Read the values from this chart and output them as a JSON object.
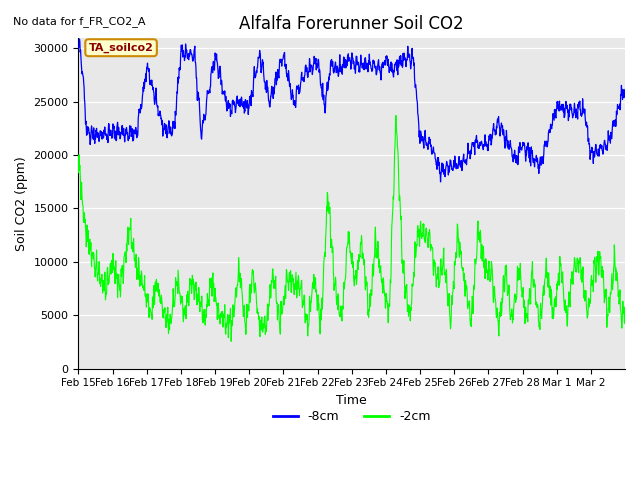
{
  "title": "Alfalfa Forerunner Soil CO2",
  "no_data_text": "No data for f_FR_CO2_A",
  "xlabel": "Time",
  "ylabel": "Soil CO2 (ppm)",
  "annotation_text": "TA_soilco2",
  "ylim": [
    0,
    31000
  ],
  "legend_labels": [
    "-8cm",
    "-2cm"
  ],
  "blue_color": "#0000ff",
  "green_color": "#00ff00",
  "bg_color": "#e8e8e8",
  "tick_labels": [
    "Feb 15",
    "Feb 16",
    "Feb 17",
    "Feb 18",
    "Feb 19",
    "Feb 20",
    "Feb 21",
    "Feb 22",
    "Feb 23",
    "Feb 24",
    "Feb 25",
    "Feb 26",
    "Feb 27",
    "Feb 28",
    "Mar 1",
    "Mar 2"
  ],
  "blue_breakpoints": [
    0,
    0.05,
    0.15,
    0.25,
    1.7,
    2.0,
    2.5,
    2.8,
    3.0,
    3.4,
    3.6,
    4.0,
    4.35,
    4.45,
    4.7,
    5.0,
    5.3,
    5.6,
    6.0,
    6.3,
    6.6,
    7.0,
    7.2,
    7.4,
    7.6,
    7.9,
    8.2,
    8.5,
    8.8,
    9.0,
    9.2,
    9.5,
    9.8,
    10.0,
    10.3,
    10.6,
    11.0,
    11.3,
    11.6,
    12.0,
    12.3,
    12.8,
    13.0,
    13.5,
    14.0,
    14.5,
    14.8,
    15.0,
    15.5,
    16.0
  ],
  "blue_heights": [
    29500,
    30000,
    26500,
    22000,
    22000,
    28200,
    22500,
    22500,
    29500,
    29500,
    22000,
    29500,
    24500,
    24500,
    25000,
    24500,
    29500,
    25000,
    29500,
    25000,
    27500,
    29000,
    24500,
    28500,
    28000,
    29000,
    28500,
    28500,
    28000,
    29000,
    28000,
    29000,
    29000,
    21500,
    21000,
    18500,
    19000,
    19500,
    21000,
    21000,
    23000,
    19500,
    21000,
    19000,
    24500,
    24000,
    24500,
    20000,
    21000,
    26500
  ],
  "green_breakpoints": [
    0,
    0.05,
    0.1,
    0.2,
    0.5,
    0.8,
    1.0,
    1.2,
    1.5,
    1.7,
    1.9,
    2.1,
    2.3,
    2.5,
    2.7,
    2.9,
    3.1,
    3.3,
    3.5,
    3.7,
    3.9,
    4.1,
    4.3,
    4.5,
    4.7,
    4.9,
    5.1,
    5.3,
    5.5,
    5.7,
    5.9,
    6.1,
    6.3,
    6.5,
    6.7,
    6.9,
    7.1,
    7.3,
    7.5,
    7.7,
    7.9,
    8.1,
    8.3,
    8.5,
    8.7,
    8.9,
    9.1,
    9.3,
    9.5,
    9.7,
    9.9,
    10.1,
    10.3,
    10.5,
    10.7,
    10.9,
    11.1,
    11.3,
    11.5,
    11.7,
    11.9,
    12.1,
    12.3,
    12.5,
    12.7,
    12.9,
    13.1,
    13.3,
    13.5,
    13.7,
    13.9,
    14.1,
    14.3,
    14.5,
    14.7,
    14.9,
    15.1,
    15.3,
    15.5,
    15.7,
    15.9,
    16.0
  ],
  "green_heights": [
    19000,
    18500,
    16000,
    13000,
    9500,
    7500,
    10000,
    7500,
    13000,
    9500,
    8000,
    5000,
    8000,
    5000,
    4500,
    8500,
    5000,
    8000,
    7000,
    4500,
    8500,
    5000,
    4500,
    4000,
    9500,
    4000,
    9000,
    4000,
    4000,
    9000,
    4000,
    8500,
    8000,
    8000,
    4000,
    8500,
    4000,
    16500,
    8000,
    4500,
    12500,
    8000,
    12000,
    5000,
    12000,
    8000,
    5000,
    24000,
    9000,
    5000,
    12000,
    13000,
    12000,
    8000,
    10000,
    4500,
    13000,
    8000,
    4500,
    13000,
    9500,
    9000,
    4000,
    9000,
    4500,
    9500,
    4500,
    9000,
    4000,
    9500,
    5000,
    9500,
    5000,
    9500,
    10000,
    5000,
    9500,
    10000,
    5000,
    10000,
    5000,
    5500
  ]
}
